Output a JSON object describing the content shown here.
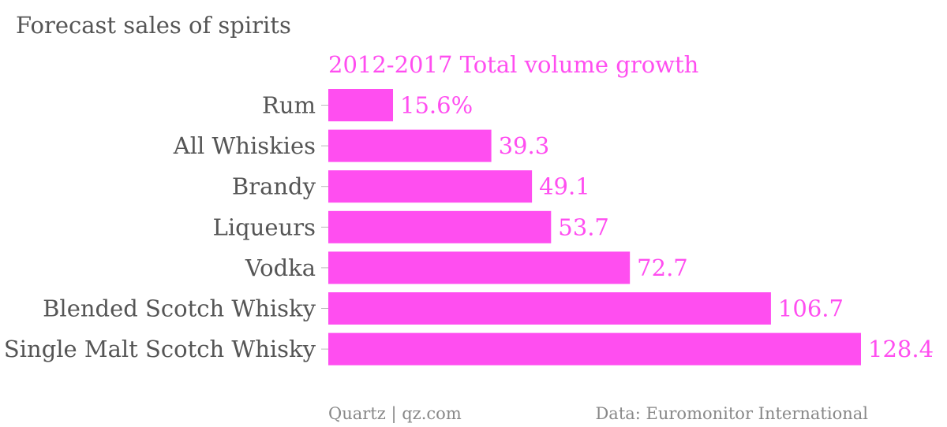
{
  "colors": {
    "accent": "#ff4ef0",
    "text": "#555555",
    "footer": "#888888"
  },
  "chart_data": {
    "type": "bar",
    "orientation": "horizontal",
    "title": "Forecast sales of spirits",
    "subtitle": "2012-2017 Total volume growth",
    "categories": [
      "Rum",
      "All Whiskies",
      "Brandy",
      "Liqueurs",
      "Vodka",
      "Blended Scotch Whisky",
      "Single Malt Scotch Whisky"
    ],
    "values": [
      15.6,
      39.3,
      49.1,
      53.7,
      72.7,
      106.7,
      128.4
    ],
    "value_labels": [
      "15.6%",
      "39.3",
      "49.1",
      "53.7",
      "72.7",
      "106.7",
      "128.4"
    ],
    "xlim": [
      0,
      128.4
    ],
    "grid": false
  },
  "footer": {
    "source_left": "Quartz | qz.com",
    "source_right": "Data: Euromonitor International"
  }
}
